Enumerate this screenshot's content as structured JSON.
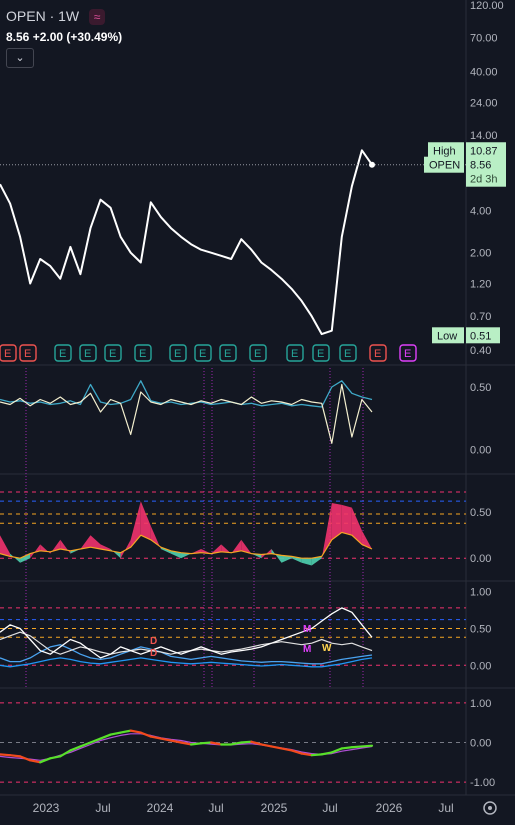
{
  "header": {
    "symbol": "OPEN",
    "interval": "1W",
    "last": "8.56",
    "change": "+2.00",
    "change_pct": "(+30.49%)"
  },
  "colors": {
    "background": "#131722",
    "price_line": "#ffffff",
    "label_green": "#b9efc5",
    "earnings_green": "#26a69a",
    "earnings_red": "#ef5350",
    "earnings_magenta": "#e040fb",
    "teal_fill": "#4fd1b0",
    "pink_fill": "#f2326e",
    "blue_line": "#2196f3",
    "cyan_line": "#3fa9c8",
    "orange_line": "#f5a623",
    "green_line": "#58e02a",
    "red_line": "#f24a1d",
    "purple_line": "#b04fd6"
  },
  "chart_data": [
    {
      "type": "line",
      "id": "price",
      "scale": "log",
      "ylim": [
        0.4,
        120
      ],
      "x": [
        "2022-09",
        "2022-10",
        "2022-11",
        "2022-12",
        "2023-01",
        "2023-02",
        "2023-03",
        "2023-04",
        "2023-05",
        "2023-06",
        "2023-07",
        "2023-08",
        "2023-09",
        "2023-10",
        "2023-11",
        "2023-12",
        "2024-01",
        "2024-02",
        "2024-03",
        "2024-04",
        "2024-05",
        "2024-06",
        "2024-07",
        "2024-08",
        "2024-09",
        "2024-10",
        "2024-11",
        "2024-12",
        "2025-01",
        "2025-02",
        "2025-03",
        "2025-04",
        "2025-05",
        "2025-06",
        "2025-07",
        "2025-08",
        "2025-09",
        "2025-10"
      ],
      "values": [
        6.2,
        4.5,
        2.6,
        1.2,
        1.8,
        1.6,
        1.3,
        2.2,
        1.4,
        3.0,
        4.8,
        4.2,
        2.6,
        2.0,
        1.7,
        4.6,
        3.6,
        3.0,
        2.6,
        2.3,
        2.1,
        2.0,
        1.9,
        1.8,
        2.5,
        2.1,
        1.7,
        1.5,
        1.3,
        1.1,
        0.9,
        0.7,
        0.52,
        0.55,
        2.6,
        6.0,
        10.87,
        8.56
      ],
      "yticks": [
        "120.00",
        "70.00",
        "40.00",
        "24.00",
        "14.00",
        "8.00",
        "4.00",
        "2.00",
        "1.20",
        "0.70",
        "0.40"
      ],
      "labels": [
        {
          "name": "High",
          "value": "10.87"
        },
        {
          "name": "OPEN",
          "value": "8.56",
          "sub": "2d 3h"
        },
        {
          "name": "Low",
          "value": "0.51"
        }
      ],
      "events": [
        "E",
        "E",
        "E",
        "E",
        "E",
        "E",
        "E",
        "E",
        "E",
        "E",
        "E",
        "E",
        "E",
        "E",
        "E",
        "E"
      ]
    },
    {
      "type": "line",
      "id": "osc1",
      "ylim": [
        -0.1,
        0.62
      ],
      "yticks": [
        "0.50",
        "0.00"
      ],
      "series": [
        {
          "values": [
            0.38,
            0.36,
            0.41,
            0.35,
            0.4,
            0.37,
            0.42,
            0.36,
            0.38,
            0.45,
            0.3,
            0.4,
            0.37,
            0.12,
            0.46,
            0.38,
            0.36,
            0.4,
            0.38,
            0.36,
            0.39,
            0.37,
            0.4,
            0.38,
            0.36,
            0.42,
            0.37,
            0.39,
            0.38,
            0.36,
            0.4,
            0.38,
            0.37,
            0.05,
            0.52,
            0.1,
            0.4,
            0.3
          ]
        },
        {
          "values": [
            0.4,
            0.38,
            0.39,
            0.37,
            0.38,
            0.36,
            0.37,
            0.39,
            0.36,
            0.52,
            0.38,
            0.36,
            0.37,
            0.4,
            0.55,
            0.39,
            0.37,
            0.38,
            0.36,
            0.37,
            0.38,
            0.36,
            0.37,
            0.38,
            0.36,
            0.37,
            0.35,
            0.36,
            0.37,
            0.35,
            0.36,
            0.35,
            0.34,
            0.5,
            0.55,
            0.45,
            0.42,
            0.4
          ]
        }
      ]
    },
    {
      "type": "area",
      "id": "osc2",
      "ylim": [
        -0.15,
        0.85
      ],
      "yticks": [
        "0.50",
        "0.00"
      ],
      "series": [
        {
          "values": [
            0.25,
            0.05,
            -0.05,
            0.0,
            0.15,
            0.05,
            0.2,
            0.05,
            0.1,
            0.25,
            0.15,
            0.1,
            0.0,
            0.2,
            0.62,
            0.35,
            0.1,
            0.05,
            0.0,
            0.05,
            0.1,
            0.05,
            0.15,
            0.05,
            0.2,
            0.05,
            0.0,
            0.1,
            -0.05,
            0.0,
            -0.05,
            -0.08,
            0.0,
            0.6,
            0.58,
            0.55,
            0.3,
            0.1
          ]
        },
        {
          "values": [
            0.05,
            0.02,
            0.0,
            0.05,
            0.08,
            0.07,
            0.1,
            0.08,
            0.1,
            0.12,
            0.1,
            0.08,
            0.06,
            0.12,
            0.25,
            0.2,
            0.12,
            0.08,
            0.06,
            0.05,
            0.06,
            0.05,
            0.07,
            0.06,
            0.08,
            0.05,
            0.04,
            0.05,
            0.03,
            0.02,
            0.0,
            0.0,
            0.02,
            0.2,
            0.28,
            0.25,
            0.15,
            0.1
          ]
        }
      ]
    },
    {
      "type": "line",
      "id": "osc3",
      "ylim": [
        -0.2,
        1.05
      ],
      "yticks": [
        "1.00",
        "0.50",
        "0.00"
      ],
      "series": [
        {
          "values": [
            0.45,
            0.55,
            0.5,
            0.35,
            0.2,
            0.15,
            0.25,
            0.35,
            0.3,
            0.2,
            0.1,
            0.15,
            0.25,
            0.2,
            0.15,
            0.2,
            0.25,
            0.2,
            0.15,
            0.2,
            0.25,
            0.2,
            0.15,
            0.18,
            0.2,
            0.22,
            0.25,
            0.3,
            0.35,
            0.4,
            0.45,
            0.5,
            0.6,
            0.7,
            0.78,
            0.72,
            0.55,
            0.38
          ]
        },
        {
          "values": [
            0.35,
            0.4,
            0.45,
            0.4,
            0.3,
            0.2,
            0.15,
            0.2,
            0.25,
            0.22,
            0.18,
            0.15,
            0.18,
            0.2,
            0.22,
            0.2,
            0.18,
            0.15,
            0.18,
            0.2,
            0.22,
            0.2,
            0.18,
            0.2,
            0.22,
            0.25,
            0.28,
            0.3,
            0.32,
            0.3,
            0.28,
            0.3,
            0.35,
            0.3,
            0.28,
            0.3,
            0.25,
            0.2
          ]
        },
        {
          "values": [
            0.1,
            0.05,
            0.05,
            0.1,
            0.18,
            0.25,
            0.28,
            0.22,
            0.15,
            0.1,
            0.08,
            0.1,
            0.15,
            0.2,
            0.25,
            0.22,
            0.18,
            0.12,
            0.1,
            0.08,
            0.1,
            0.12,
            0.1,
            0.08,
            0.06,
            0.05,
            0.04,
            0.05,
            0.05,
            0.04,
            0.03,
            0.02,
            0.02,
            0.05,
            0.08,
            0.1,
            0.12,
            0.14
          ]
        },
        {
          "values": [
            0.0,
            -0.02,
            0.0,
            0.02,
            0.05,
            0.08,
            0.1,
            0.08,
            0.05,
            0.03,
            0.02,
            0.04,
            0.06,
            0.08,
            0.1,
            0.08,
            0.06,
            0.04,
            0.03,
            0.02,
            0.03,
            0.04,
            0.03,
            0.02,
            0.01,
            0.0,
            -0.01,
            0.0,
            0.01,
            0.0,
            -0.01,
            -0.02,
            -0.02,
            0.0,
            0.02,
            0.05,
            0.08,
            0.1
          ]
        }
      ],
      "markers": [
        "D",
        "D",
        "M",
        "M",
        "W"
      ]
    },
    {
      "type": "line",
      "id": "osc4",
      "ylim": [
        -1.2,
        1.2
      ],
      "yticks": [
        "1.00",
        "0.00",
        "-1.00"
      ],
      "series": [
        {
          "values": [
            -0.3,
            -0.32,
            -0.35,
            -0.45,
            -0.5,
            -0.4,
            -0.35,
            -0.2,
            -0.1,
            0.0,
            0.1,
            0.2,
            0.25,
            0.3,
            0.25,
            0.15,
            0.1,
            0.05,
            0.0,
            -0.05,
            -0.02,
            0.0,
            -0.05,
            -0.05,
            0.0,
            0.02,
            -0.05,
            -0.1,
            -0.15,
            -0.2,
            -0.28,
            -0.32,
            -0.3,
            -0.25,
            -0.15,
            -0.12,
            -0.1,
            -0.08
          ]
        },
        {
          "values": [
            -0.35,
            -0.38,
            -0.4,
            -0.42,
            -0.45,
            -0.4,
            -0.32,
            -0.25,
            -0.15,
            -0.05,
            0.05,
            0.12,
            0.18,
            0.22,
            0.22,
            0.18,
            0.12,
            0.08,
            0.05,
            0.0,
            -0.02,
            -0.04,
            -0.06,
            -0.06,
            -0.04,
            -0.03,
            -0.06,
            -0.1,
            -0.14,
            -0.18,
            -0.24,
            -0.28,
            -0.3,
            -0.28,
            -0.22,
            -0.18,
            -0.14,
            -0.1
          ]
        }
      ]
    }
  ],
  "time_axis": [
    "2023",
    "Jul",
    "2024",
    "Jul",
    "2025",
    "Jul",
    "2026",
    "Jul"
  ]
}
